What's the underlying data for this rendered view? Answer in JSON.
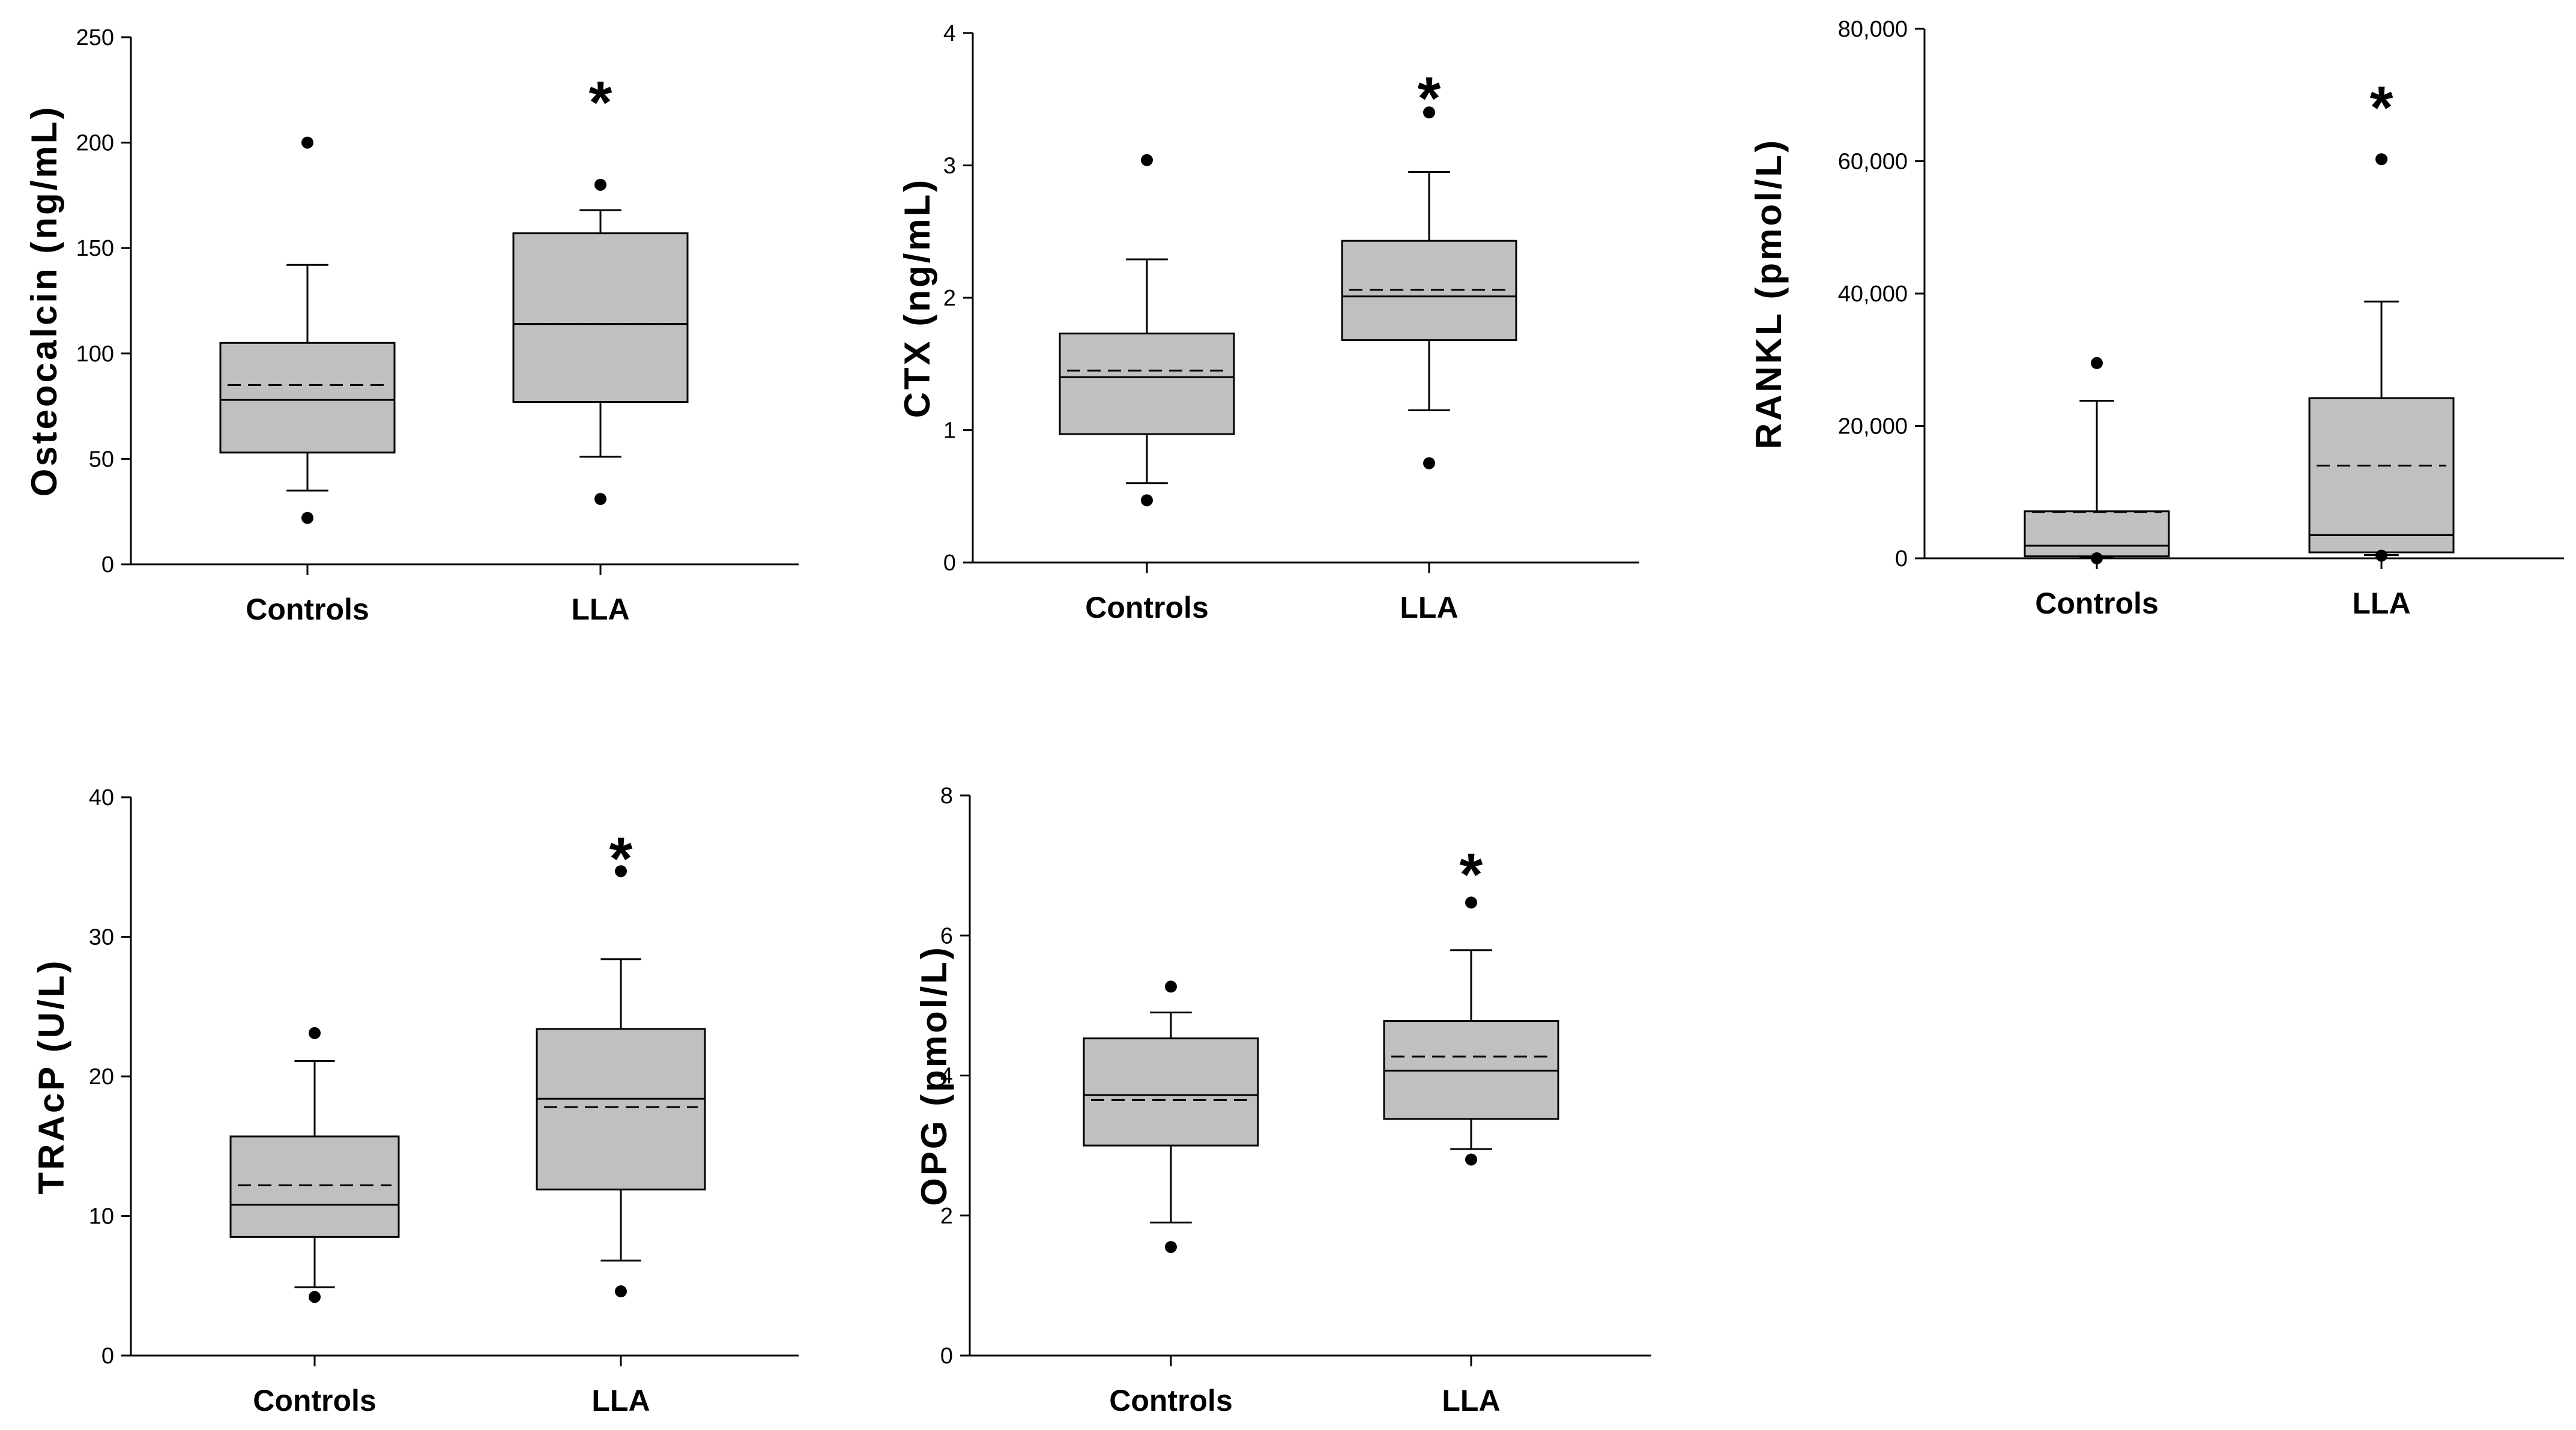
{
  "chart_data": [
    {
      "type": "box",
      "ylabel": "Osteocalcin (ng/mL)",
      "categories": [
        "Controls",
        "LLA"
      ],
      "ylim": [
        0,
        250
      ],
      "yticks": [
        0,
        50,
        100,
        150,
        200,
        250
      ],
      "tick_labels": [
        "0",
        "50",
        "100",
        "150",
        "200",
        "250"
      ],
      "series": [
        {
          "name": "Controls",
          "whisker_low": 35,
          "q1": 53,
          "median": 78,
          "mean": 85,
          "q3": 105,
          "whisker_high": 142,
          "outliers": [
            22,
            200
          ]
        },
        {
          "name": "LLA",
          "whisker_low": 51,
          "q1": 77,
          "median": 114,
          "mean": 114,
          "q3": 157,
          "whisker_high": 168,
          "outliers": [
            31,
            180
          ]
        }
      ],
      "annotation": {
        "text": "*",
        "category": "LLA",
        "y": 225
      }
    },
    {
      "type": "box",
      "ylabel": "CTX (ng/mL)",
      "categories": [
        "Controls",
        "LLA"
      ],
      "ylim": [
        0,
        4
      ],
      "yticks": [
        0,
        1,
        2,
        3,
        4
      ],
      "tick_labels": [
        "0",
        "1",
        "2",
        "3",
        "4"
      ],
      "series": [
        {
          "name": "Controls",
          "whisker_low": 0.6,
          "q1": 0.97,
          "median": 1.4,
          "mean": 1.45,
          "q3": 1.73,
          "whisker_high": 2.29,
          "outliers": [
            0.47,
            3.04
          ]
        },
        {
          "name": "LLA",
          "whisker_low": 1.15,
          "q1": 1.68,
          "median": 2.01,
          "mean": 2.06,
          "q3": 2.43,
          "whisker_high": 2.95,
          "outliers": [
            0.75,
            3.4
          ]
        }
      ],
      "annotation": {
        "text": "*",
        "category": "LLA",
        "y": 3.6
      }
    },
    {
      "type": "box",
      "ylabel": "RANKL (pmol/L)",
      "categories": [
        "Controls",
        "LLA"
      ],
      "ylim": [
        0,
        80000
      ],
      "yticks": [
        0,
        20000,
        40000,
        60000,
        80000
      ],
      "tick_labels": [
        "0",
        "20,000",
        "40,000",
        "60,000",
        "80,000"
      ],
      "series": [
        {
          "name": "Controls",
          "whisker_low": 100,
          "q1": 300,
          "median": 1900,
          "mean": 7000,
          "q3": 7100,
          "whisker_high": 23800,
          "outliers": [
            0,
            29500
          ]
        },
        {
          "name": "LLA",
          "whisker_low": 500,
          "q1": 900,
          "median": 3500,
          "mean": 14000,
          "q3": 24200,
          "whisker_high": 38800,
          "outliers": [
            400,
            60300
          ]
        }
      ],
      "annotation": {
        "text": "*",
        "category": "LLA",
        "y": 70000
      }
    },
    {
      "type": "box",
      "ylabel": "TRAcP (U/L)",
      "categories": [
        "Controls",
        "LLA"
      ],
      "ylim": [
        0,
        40
      ],
      "yticks": [
        0,
        10,
        20,
        30,
        40
      ],
      "tick_labels": [
        "0",
        "10",
        "20",
        "30",
        "40"
      ],
      "series": [
        {
          "name": "Controls",
          "whisker_low": 4.9,
          "q1": 8.5,
          "median": 10.8,
          "mean": 12.2,
          "q3": 15.7,
          "whisker_high": 21.1,
          "outliers": [
            4.2,
            23.1
          ]
        },
        {
          "name": "LLA",
          "whisker_low": 6.8,
          "q1": 11.9,
          "median": 18.4,
          "mean": 17.8,
          "q3": 23.4,
          "whisker_high": 28.4,
          "outliers": [
            4.6,
            34.7
          ]
        }
      ],
      "annotation": {
        "text": "*",
        "category": "LLA",
        "y": 36.5
      }
    },
    {
      "type": "box",
      "ylabel": "OPG (pmol/L)",
      "categories": [
        "Controls",
        "LLA"
      ],
      "ylim": [
        0,
        8
      ],
      "yticks": [
        0,
        2,
        4,
        6,
        8
      ],
      "tick_labels": [
        "0",
        "2",
        "4",
        "6",
        "8"
      ],
      "series": [
        {
          "name": "Controls",
          "whisker_low": 1.9,
          "q1": 3.0,
          "median": 3.72,
          "mean": 3.65,
          "q3": 4.53,
          "whisker_high": 4.9,
          "outliers": [
            1.55,
            5.27
          ]
        },
        {
          "name": "LLA",
          "whisker_low": 2.95,
          "q1": 3.38,
          "median": 4.07,
          "mean": 4.27,
          "q3": 4.78,
          "whisker_high": 5.79,
          "outliers": [
            2.8,
            6.47
          ]
        }
      ],
      "annotation": {
        "text": "*",
        "category": "LLA",
        "y": 7.05
      }
    }
  ]
}
